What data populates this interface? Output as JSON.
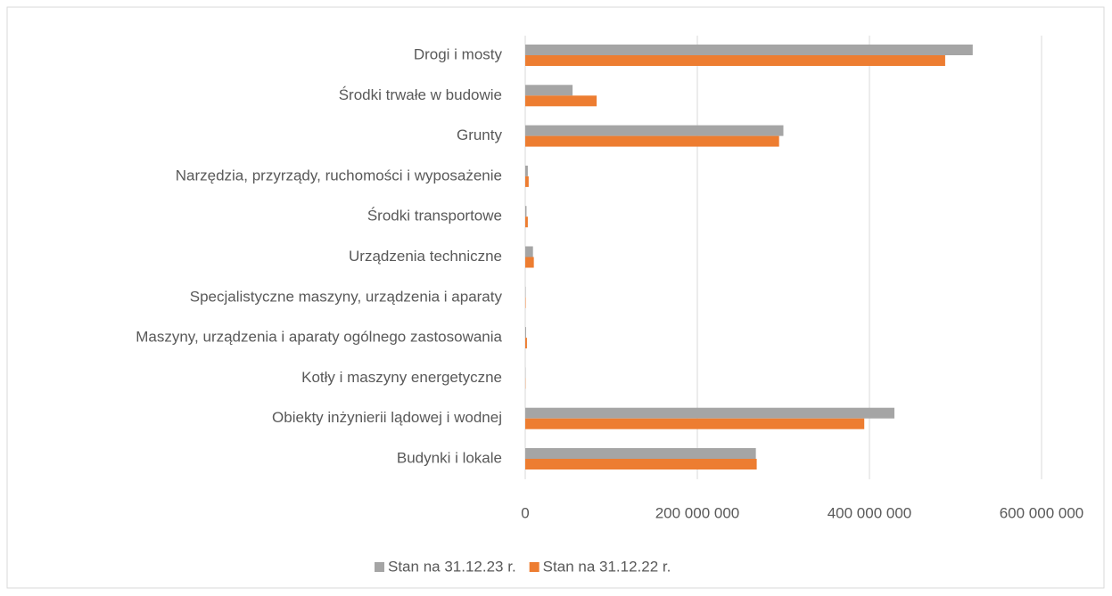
{
  "chart_data": {
    "type": "hbar",
    "categories": [
      "Drogi i mosty",
      "Środki trwałe w budowie",
      "Grunty",
      "Narzędzia, przyrządy, ruchomości i wyposażenie",
      "Środki transportowe",
      "Urządzenia techniczne",
      "Specjalistyczne maszyny, urządzenia i aparaty",
      "Maszyny, urządzenia i aparaty ogólnego zastosowania",
      "Kotły i maszyny energetyczne",
      "Obiekty inżynierii lądowej i wodnej",
      "Budynki i lokale"
    ],
    "series": [
      {
        "name": "Stan na 31.12.23 r.",
        "color": "#a5a5a5",
        "values": [
          520000000,
          55000000,
          300000000,
          3000000,
          1500000,
          9000000,
          500000,
          1000000,
          300000,
          429000000,
          268000000
        ]
      },
      {
        "name": "Stan na 31.12.22 r.",
        "color": "#ed7d31",
        "values": [
          488000000,
          83000000,
          295000000,
          4000000,
          3000000,
          10000000,
          500000,
          2000000,
          300000,
          394000000,
          269000000
        ]
      }
    ],
    "xlim": [
      0,
      600000000
    ],
    "xticks": [
      0,
      {
        "value": 200000000,
        "label": "200 000 000"
      },
      {
        "value": 400000000,
        "label": "400 000 000"
      },
      {
        "value": 600000000,
        "label": "600 000 000"
      }
    ],
    "grid": true,
    "legend": "bottom"
  }
}
